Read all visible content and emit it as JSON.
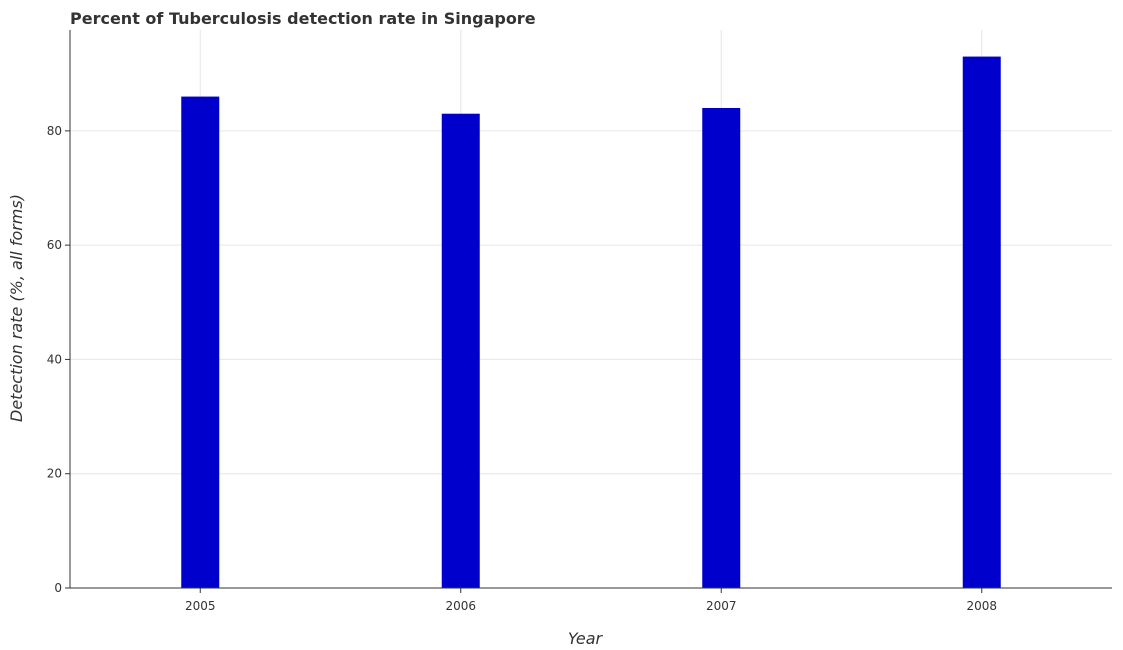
{
  "chart_data": {
    "type": "bar",
    "title": "Percent of Tuberculosis detection rate in Singapore",
    "xlabel": "Year",
    "ylabel": "Detection rate (%, all forms)",
    "categories": [
      "2005",
      "2006",
      "2007",
      "2008"
    ],
    "values": [
      86,
      83,
      84,
      93
    ],
    "ylim": [
      0,
      97.65
    ],
    "yticks": [
      0,
      20,
      40,
      60,
      80
    ],
    "grid": true,
    "legend": "none",
    "bar_color": "#0000cc"
  }
}
